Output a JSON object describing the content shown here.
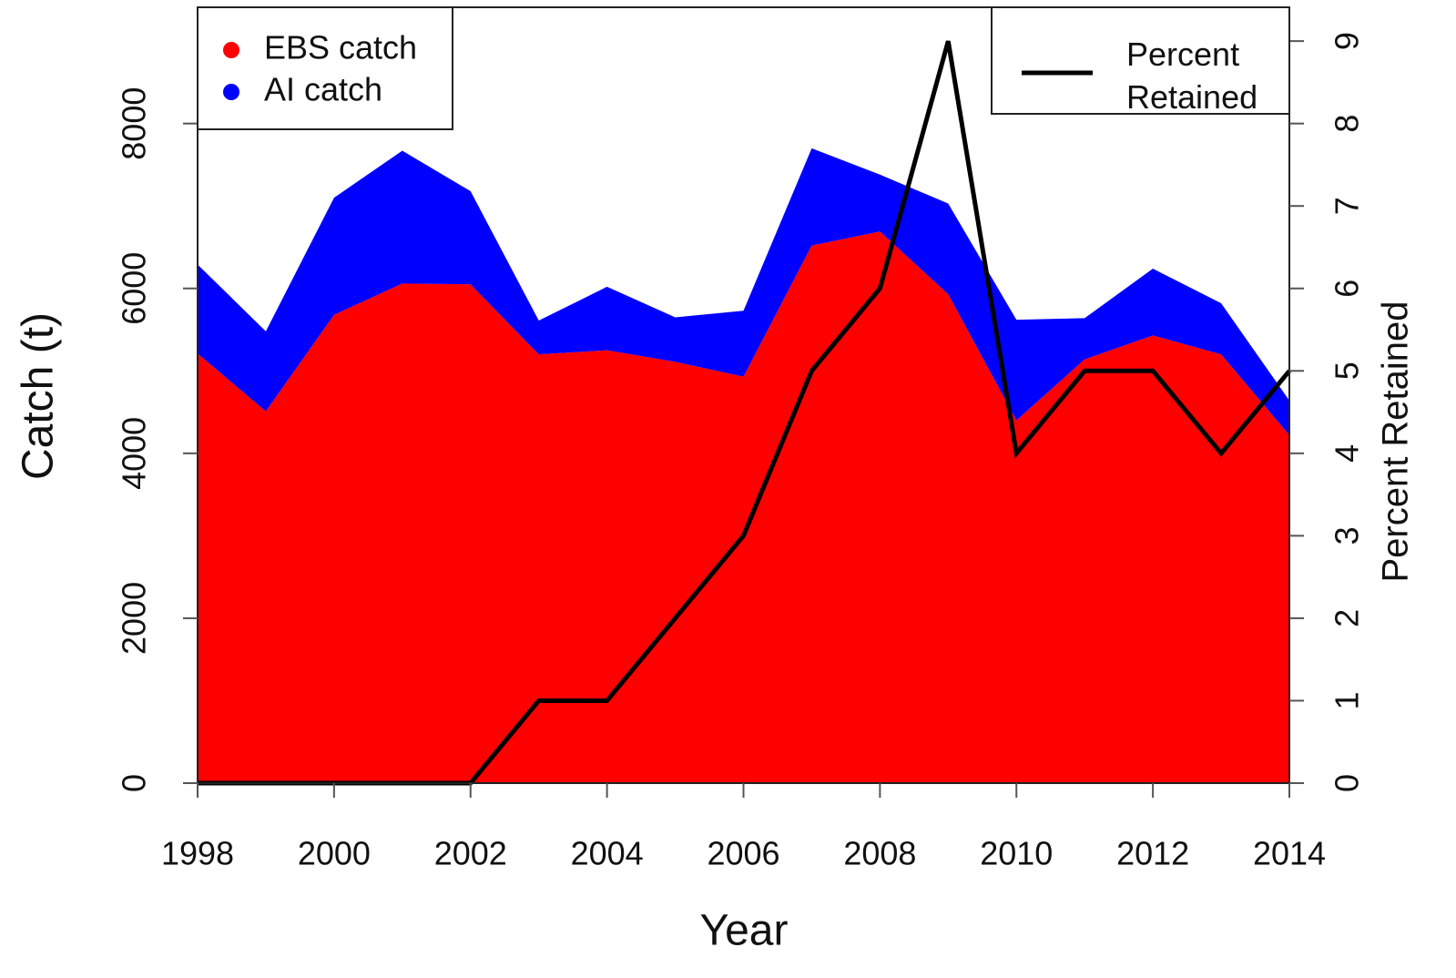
{
  "chart_data": {
    "type": "stacked-area-line",
    "xlabel": "Year",
    "ylabel": "Catch (t)",
    "y2label": "Percent Retained",
    "x": [
      1998,
      1999,
      2000,
      2001,
      2002,
      2003,
      2004,
      2005,
      2006,
      2007,
      2008,
      2009,
      2010,
      2011,
      2012,
      2013,
      2014
    ],
    "series": [
      {
        "name": "EBS catch",
        "color": "#ff0000",
        "values": [
          5210,
          4510,
          5680,
          6060,
          6050,
          5200,
          5250,
          5110,
          4930,
          6520,
          6690,
          5930,
          4400,
          5140,
          5430,
          5200,
          4220
        ]
      },
      {
        "name": "AI catch",
        "color": "#0000ff",
        "values": [
          1080,
          970,
          1420,
          1610,
          1130,
          410,
          770,
          540,
          800,
          1180,
          690,
          1100,
          1220,
          500,
          810,
          620,
          420
        ]
      },
      {
        "name": "Percent Retained",
        "color": "#000000",
        "axis": "y2",
        "values": [
          0,
          0,
          0,
          0,
          0,
          1,
          1,
          2,
          3,
          5,
          6,
          9,
          4,
          5,
          5,
          4,
          5
        ]
      }
    ],
    "xlim": [
      1998,
      2014
    ],
    "xticks": [
      1998,
      2000,
      2002,
      2004,
      2006,
      2008,
      2010,
      2012,
      2014
    ],
    "ylim": [
      0,
      9410
    ],
    "yticks": [
      0,
      2000,
      4000,
      6000,
      8000
    ],
    "y2lim": [
      0,
      9.41
    ],
    "y2ticks": [
      0,
      1,
      2,
      3,
      4,
      5,
      6,
      7,
      8,
      9
    ],
    "legend": "top-left",
    "legend2": "top-right",
    "grid": false
  }
}
